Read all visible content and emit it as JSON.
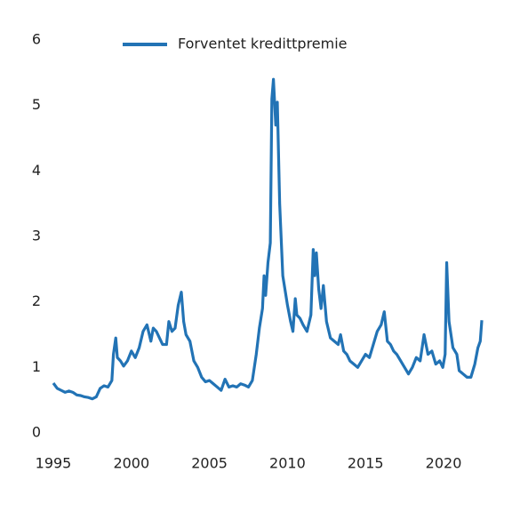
{
  "chart_data": {
    "type": "line",
    "series": [
      {
        "name": "Forventet kredittpremie",
        "color": "#2273b5",
        "x": [
          1995.0,
          1995.25,
          1995.5,
          1995.75,
          1996.0,
          1996.25,
          1996.5,
          1996.75,
          1997.0,
          1997.25,
          1997.5,
          1997.75,
          1998.0,
          1998.25,
          1998.5,
          1998.75,
          1998.85,
          1999.0,
          1999.1,
          1999.3,
          1999.5,
          1999.75,
          2000.0,
          2000.25,
          2000.5,
          2000.75,
          2001.0,
          2001.25,
          2001.4,
          2001.6,
          2001.8,
          2002.0,
          2002.25,
          2002.4,
          2002.6,
          2002.8,
          2003.0,
          2003.2,
          2003.35,
          2003.5,
          2003.75,
          2004.0,
          2004.25,
          2004.5,
          2004.75,
          2005.0,
          2005.25,
          2005.5,
          2005.75,
          2006.0,
          2006.25,
          2006.5,
          2006.75,
          2007.0,
          2007.25,
          2007.5,
          2007.75,
          2008.0,
          2008.2,
          2008.4,
          2008.5,
          2008.6,
          2008.75,
          2008.9,
          2009.0,
          2009.1,
          2009.25,
          2009.35,
          2009.5,
          2009.7,
          2010.0,
          2010.2,
          2010.35,
          2010.5,
          2010.6,
          2010.8,
          2011.0,
          2011.25,
          2011.5,
          2011.65,
          2011.75,
          2011.85,
          2012.0,
          2012.15,
          2012.3,
          2012.5,
          2012.75,
          2013.0,
          2013.25,
          2013.4,
          2013.6,
          2013.8,
          2014.0,
          2014.25,
          2014.5,
          2014.75,
          2015.0,
          2015.25,
          2015.5,
          2015.75,
          2016.0,
          2016.2,
          2016.4,
          2016.6,
          2016.8,
          2017.0,
          2017.25,
          2017.5,
          2017.75,
          2018.0,
          2018.25,
          2018.5,
          2018.75,
          2019.0,
          2019.25,
          2019.5,
          2019.75,
          2019.95,
          2020.1,
          2020.2,
          2020.35,
          2020.6,
          2020.85,
          2021.0,
          2021.25,
          2021.5,
          2021.75,
          2022.0,
          2022.2,
          2022.35,
          2022.45
        ],
        "values": [
          0.76,
          0.68,
          0.65,
          0.62,
          0.64,
          0.62,
          0.58,
          0.57,
          0.55,
          0.54,
          0.52,
          0.55,
          0.68,
          0.72,
          0.7,
          0.8,
          1.2,
          1.45,
          1.15,
          1.1,
          1.02,
          1.1,
          1.25,
          1.15,
          1.3,
          1.55,
          1.65,
          1.4,
          1.6,
          1.55,
          1.45,
          1.35,
          1.35,
          1.7,
          1.55,
          1.6,
          1.95,
          2.15,
          1.7,
          1.5,
          1.4,
          1.1,
          1.0,
          0.85,
          0.78,
          0.8,
          0.75,
          0.7,
          0.65,
          0.82,
          0.7,
          0.72,
          0.7,
          0.75,
          0.73,
          0.7,
          0.8,
          1.2,
          1.6,
          1.9,
          2.4,
          2.1,
          2.6,
          2.9,
          5.1,
          5.4,
          4.7,
          5.05,
          3.5,
          2.4,
          1.95,
          1.7,
          1.55,
          2.05,
          1.8,
          1.75,
          1.65,
          1.55,
          1.8,
          2.8,
          2.4,
          2.75,
          2.2,
          1.9,
          2.25,
          1.7,
          1.45,
          1.4,
          1.35,
          1.5,
          1.25,
          1.2,
          1.1,
          1.05,
          1.0,
          1.1,
          1.2,
          1.15,
          1.35,
          1.55,
          1.65,
          1.85,
          1.4,
          1.35,
          1.25,
          1.2,
          1.1,
          1.0,
          0.9,
          1.0,
          1.15,
          1.1,
          1.5,
          1.2,
          1.25,
          1.05,
          1.1,
          1.0,
          1.2,
          2.6,
          1.7,
          1.3,
          1.2,
          0.95,
          0.9,
          0.85,
          0.85,
          1.05,
          1.3,
          1.4,
          1.72
        ]
      }
    ],
    "xlim": [
      1995,
      2023
    ],
    "xticks": [
      1995,
      2000,
      2005,
      2010,
      2015,
      2020
    ],
    "ylim": [
      0,
      6
    ],
    "yticks": [
      0,
      1,
      2,
      3,
      4,
      5,
      6
    ],
    "grid": false,
    "legend": "top"
  }
}
